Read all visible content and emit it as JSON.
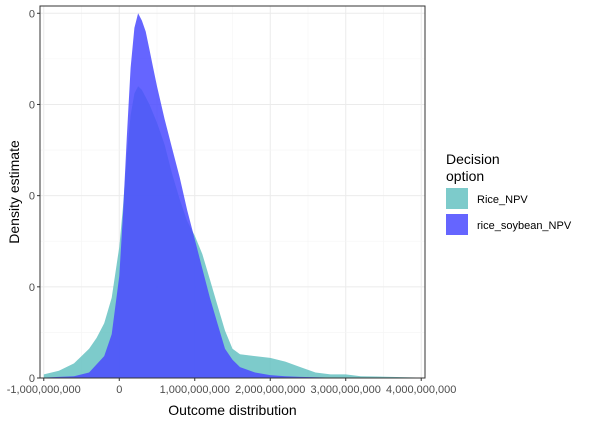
{
  "chart_data": {
    "type": "area",
    "title": "",
    "xlabel": "Outcome distribution",
    "ylabel": "Density estimate",
    "xlim": [
      -1050000000,
      4050000000
    ],
    "ylim": [
      0,
      1.02
    ],
    "x_ticks": [
      -1000000000,
      0,
      1000000000,
      2000000000,
      3000000000,
      4000000000
    ],
    "x_tick_labels": [
      "-1,000,000,000",
      "0",
      "1,000,000,000",
      "2,000,000,000",
      "3,000,000,000",
      "4,000,000,000"
    ],
    "y_ticks": [
      0,
      0.25,
      0.5,
      0.75,
      1.0
    ],
    "y_tick_labels": [
      "0",
      "0",
      "0",
      "0",
      "0"
    ],
    "grid": true,
    "legend": {
      "title": "Decision\noption",
      "placement": "right"
    },
    "series": [
      {
        "name": "Rice_NPV",
        "color": "#66c2c2",
        "x": [
          -1000000000,
          -800000000,
          -600000000,
          -400000000,
          -300000000,
          -200000000,
          -100000000,
          0,
          50000000,
          100000000,
          150000000,
          200000000,
          250000000,
          300000000,
          350000000,
          400000000,
          500000000,
          600000000,
          700000000,
          800000000,
          900000000,
          1000000000,
          1100000000,
          1200000000,
          1300000000,
          1400000000,
          1500000000,
          1600000000,
          1800000000,
          2000000000,
          2200000000,
          2400000000,
          2600000000,
          2800000000,
          3000000000,
          3200000000,
          3400000000,
          3600000000,
          3800000000,
          4000000000
        ],
        "y": [
          0.01,
          0.02,
          0.04,
          0.08,
          0.11,
          0.15,
          0.22,
          0.36,
          0.47,
          0.61,
          0.72,
          0.78,
          0.8,
          0.79,
          0.77,
          0.75,
          0.7,
          0.64,
          0.56,
          0.49,
          0.43,
          0.39,
          0.34,
          0.27,
          0.2,
          0.13,
          0.08,
          0.065,
          0.06,
          0.055,
          0.045,
          0.03,
          0.015,
          0.01,
          0.01,
          0.005,
          0.004,
          0.003,
          0.002,
          0.001
        ]
      },
      {
        "name": "rice_soybean_NPV",
        "color": "#4a4aff",
        "x": [
          -1000000000,
          -800000000,
          -600000000,
          -400000000,
          -200000000,
          -100000000,
          0,
          50000000,
          100000000,
          150000000,
          200000000,
          250000000,
          300000000,
          350000000,
          400000000,
          450000000,
          500000000,
          600000000,
          700000000,
          800000000,
          900000000,
          1000000000,
          1100000000,
          1200000000,
          1300000000,
          1400000000,
          1500000000,
          1600000000,
          1800000000,
          2000000000,
          2200000000,
          2400000000,
          2600000000,
          2800000000,
          3000000000,
          3500000000,
          4000000000
        ],
        "y": [
          0.001,
          0.003,
          0.005,
          0.015,
          0.06,
          0.12,
          0.28,
          0.45,
          0.66,
          0.85,
          0.96,
          1.0,
          0.98,
          0.95,
          0.9,
          0.85,
          0.8,
          0.71,
          0.63,
          0.55,
          0.46,
          0.38,
          0.3,
          0.22,
          0.15,
          0.08,
          0.05,
          0.03,
          0.015,
          0.008,
          0.005,
          0.003,
          0.002,
          0.001,
          0.001,
          0.0005,
          0.0002
        ]
      }
    ]
  }
}
